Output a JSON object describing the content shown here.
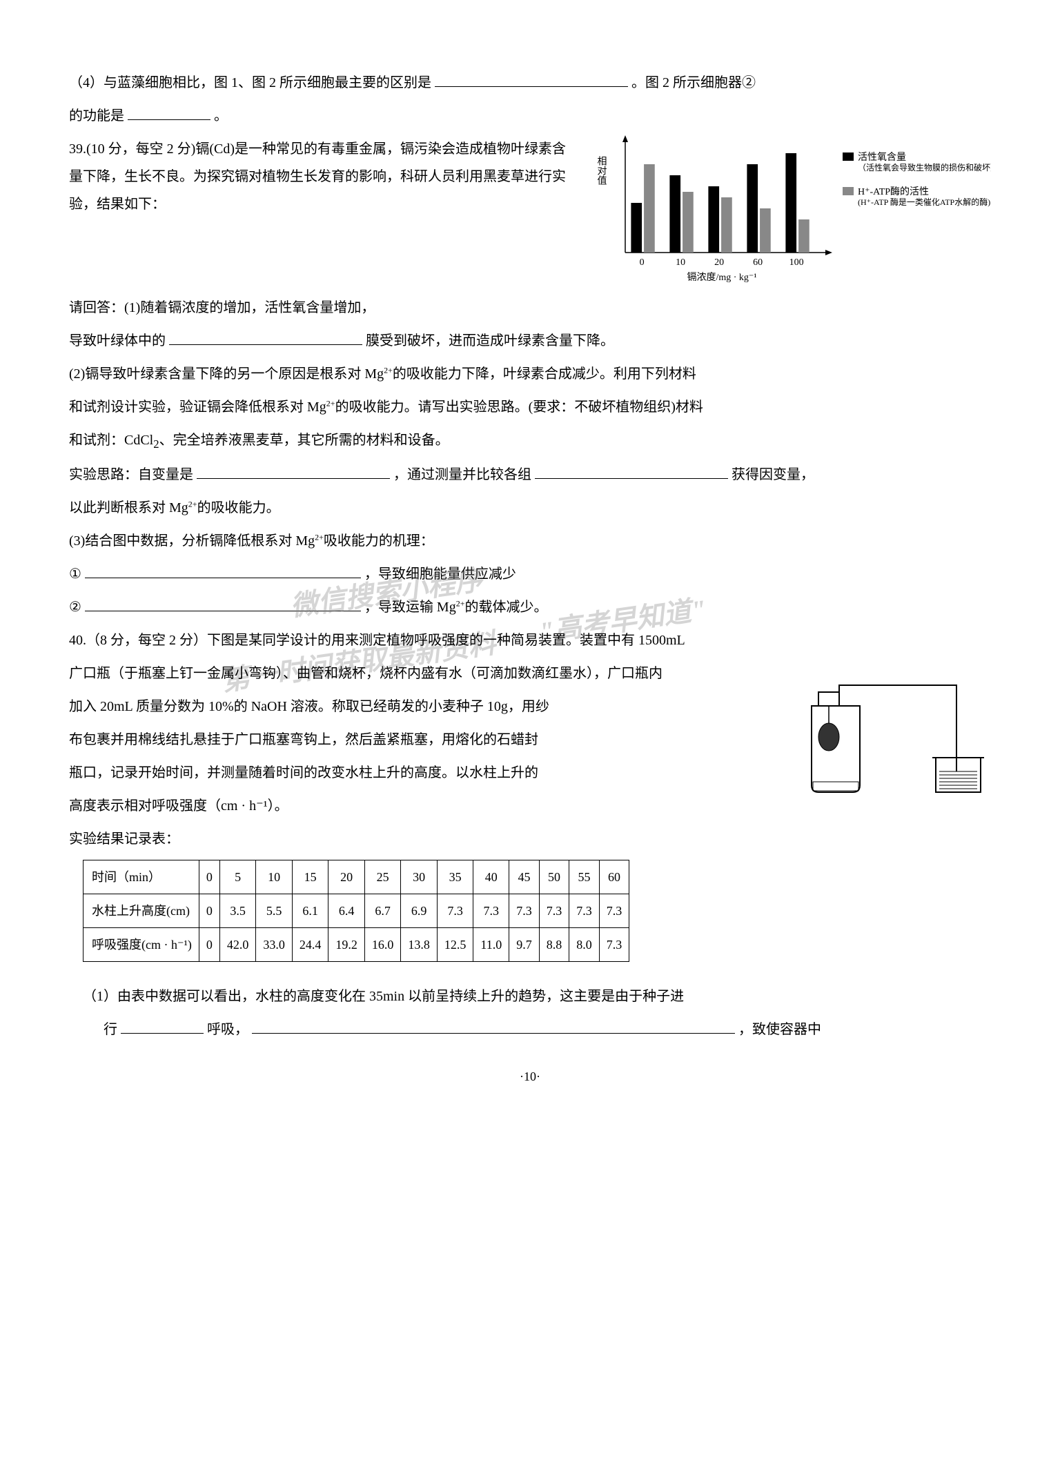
{
  "q38_4": {
    "text_a": "（4）与蓝藻细胞相比，图 1、图 2 所示细胞最主要的区别是",
    "text_b": "。图 2 所示细胞器②",
    "text_c": "的功能是",
    "text_d": "。"
  },
  "q39": {
    "header": "39.(10 分，每空 2 分)镉(Cd)是一种常见的有毒重金属，镉污染会造成植物叶绿素含量下降，生长不良。为探究镉对植物生长发育的影响，科研人员利用黑麦草进行实验，结果如下：",
    "p1": "请回答：(1)随着镉浓度的增加，活性氧含量增加，",
    "p1b": "导致叶绿体中的",
    "p1c": "膜受到破坏，进而造成叶绿素含量下降。",
    "p2a": "(2)镉导致叶绿素含量下降的另一个原因是根系对 Mg",
    "p2a2": "的吸收能力下降，叶绿素合成减少。利用下列材料",
    "p2b": "和试剂设计实验，验证镉会降低根系对 Mg",
    "p2b2": "的吸收能力。请写出实验思路。(要求：不破坏植物组织)材料",
    "p2c": "和试剂：CdCl",
    "p2c2": "、完全培养液黑麦草，其它所需的材料和设备。",
    "p2d": "实验思路：自变量是",
    "p2e": "，通过测量并比较各组",
    "p2f": "获得因变量，",
    "p2g": "以此判断根系对 Mg",
    "p2g2": "的吸收能力。",
    "p3a": "(3)结合图中数据，分析镉降低根系对 Mg",
    "p3a2": "吸收能力的机理：",
    "p3b": "①",
    "p3c": "，导致细胞能量供应减少",
    "p3d": "②",
    "p3e": "，导致运输 Mg",
    "p3e2": "的载体减少。",
    "chart": {
      "type": "bar",
      "ylabel": "相对值",
      "xlabel": "镉浓度/mg · kg⁻¹",
      "categories": [
        "0",
        "10",
        "20",
        "60",
        "100"
      ],
      "series1": {
        "name": "活性氧含量",
        "sub": "（活性氧会导致生物膜的损伤和破坏）",
        "values": [
          45,
          70,
          60,
          80,
          90
        ],
        "color": "#000000"
      },
      "series2": {
        "name": "H⁺-ATP酶的活性",
        "sub": "(H⁺-ATP 酶是一类催化ATP水解的酶)",
        "values": [
          80,
          55,
          50,
          40,
          30
        ],
        "color": "#888888"
      },
      "ymax": 100,
      "bg": "#ffffff"
    }
  },
  "q40": {
    "header": "40.（8 分，每空 2 分）下图是某同学设计的用来测定植物呼吸强度的一种简易装置。装置中有 1500mL",
    "p1": "广口瓶（于瓶塞上钉一金属小弯钩）、曲管和烧杯，烧杯内盛有水（可滴加数滴红墨水），广口瓶内",
    "p2": "加入 20mL 质量分数为 10%的 NaOH 溶液。称取已经萌发的小麦种子 10g，用纱",
    "p3": "布包裹并用棉线结扎悬挂于广口瓶塞弯钩上，然后盖紧瓶塞，用熔化的石蜡封",
    "p4": "瓶口，记录开始时间，并测量随着时间的改变水柱上升的高度。以水柱上升的",
    "p5": "高度表示相对呼吸强度（cm · h⁻¹）。",
    "table_title": "实验结果记录表：",
    "table": {
      "row_headers": [
        "时间（min）",
        "水柱上升高度(cm)",
        "呼吸强度(cm · h⁻¹)"
      ],
      "cols": [
        "0",
        "5",
        "10",
        "15",
        "20",
        "25",
        "30",
        "35",
        "40",
        "45",
        "50",
        "55",
        "60"
      ],
      "row1": [
        "0",
        "3.5",
        "5.5",
        "6.1",
        "6.4",
        "6.7",
        "6.9",
        "7.3",
        "7.3",
        "7.3",
        "7.3",
        "7.3",
        "7.3"
      ],
      "row2": [
        "0",
        "42.0",
        "33.0",
        "24.4",
        "19.2",
        "16.0",
        "13.8",
        "12.5",
        "11.0",
        "9.7",
        "8.8",
        "8.0",
        "7.3"
      ]
    },
    "q1a": "（1）由表中数据可以看出，水柱的高度变化在 35min 以前呈持续上升的趋势，这主要是由于种子进",
    "q1b": "行",
    "q1c": "呼吸，",
    "q1d": "，致使容器中"
  },
  "watermarks": {
    "w1": "微信搜索小程序",
    "w2": "\"高考早知道\"",
    "w3": "第一时间获取最新资料"
  },
  "page_num": "·10·"
}
